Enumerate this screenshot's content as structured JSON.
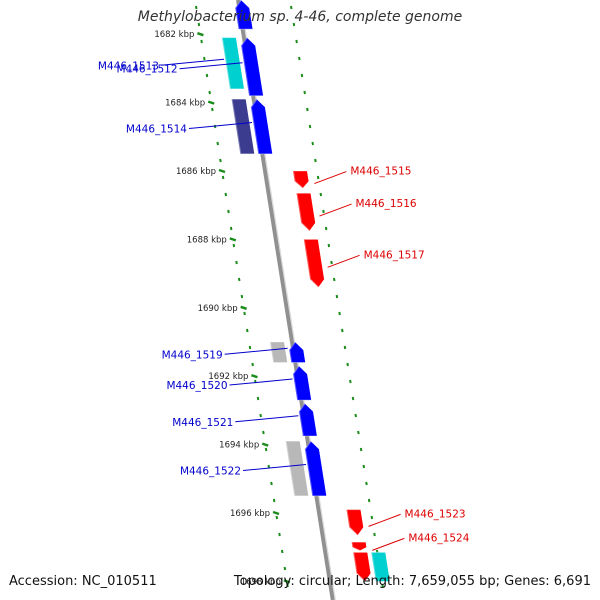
{
  "title": "Methylobacterium sp. 4-46, complete genome",
  "footer": {
    "accession": "Accession: NC_010511",
    "summary": "Topology: circular; Length: 7,659,055 bp; Genes: 6,691"
  },
  "colors": {
    "forward_gene": "#0000ff",
    "reverse_gene": "#ff0000",
    "dark_gene": "#3b3b8f",
    "cyan_gene": "#00d0d0",
    "grey_gene": "#b8b8b8",
    "backbone": "#909090",
    "tick": "#1a8c1a",
    "forward_label": "#0000cc",
    "reverse_label": "#dd0000"
  },
  "ticks": [
    {
      "label": "1682 kbp",
      "kbp": 1682
    },
    {
      "label": "1684 kbp",
      "kbp": 1684
    },
    {
      "label": "1686 kbp",
      "kbp": 1686
    },
    {
      "label": "1688 kbp",
      "kbp": 1688
    },
    {
      "label": "1690 kbp",
      "kbp": 1690
    },
    {
      "label": "1692 kbp",
      "kbp": 1692
    },
    {
      "label": "1694 kbp",
      "kbp": 1694
    },
    {
      "label": "1696 kbp",
      "kbp": 1696
    },
    {
      "label": "1698 kbp",
      "kbp": 1698
    }
  ],
  "genes": [
    {
      "name": "",
      "strand": "forward",
      "color": "forward_gene",
      "start_kbp": 1681.0,
      "end_kbp": 1681.85
    },
    {
      "name": "M446_1512",
      "strand": "forward",
      "color": "forward_gene",
      "start_kbp": 1682.1,
      "end_kbp": 1683.8
    },
    {
      "name": "M446_1513",
      "strand": "forward",
      "color": "cyan_gene",
      "start_kbp": 1682.1,
      "end_kbp": 1683.6
    },
    {
      "name": "M446_1514",
      "strand": "forward",
      "color": "forward_gene",
      "start_kbp": 1683.9,
      "end_kbp": 1685.5
    },
    {
      "name": "",
      "strand": "forward",
      "color": "dark_gene",
      "start_kbp": 1683.9,
      "end_kbp": 1685.5
    },
    {
      "name": "M446_1515",
      "strand": "reverse",
      "color": "reverse_gene",
      "start_kbp": 1686.0,
      "end_kbp": 1686.5
    },
    {
      "name": "M446_1516",
      "strand": "reverse",
      "color": "reverse_gene",
      "start_kbp": 1686.65,
      "end_kbp": 1687.75
    },
    {
      "name": "M446_1517",
      "strand": "reverse",
      "color": "reverse_gene",
      "start_kbp": 1688.0,
      "end_kbp": 1689.4
    },
    {
      "name": "M446_1519",
      "strand": "forward",
      "color": "forward_gene",
      "start_kbp": 1691.0,
      "end_kbp": 1691.6
    },
    {
      "name": "",
      "strand": "forward",
      "color": "grey_gene",
      "start_kbp": 1691.0,
      "end_kbp": 1691.6
    },
    {
      "name": "M446_1520",
      "strand": "forward",
      "color": "forward_gene",
      "start_kbp": 1691.7,
      "end_kbp": 1692.7
    },
    {
      "name": "M446_1521",
      "strand": "forward",
      "color": "forward_gene",
      "start_kbp": 1692.8,
      "end_kbp": 1693.75
    },
    {
      "name": "M446_1522",
      "strand": "forward",
      "color": "forward_gene",
      "start_kbp": 1693.9,
      "end_kbp": 1695.5
    },
    {
      "name": "",
      "strand": "forward",
      "color": "grey_gene",
      "start_kbp": 1693.9,
      "end_kbp": 1695.5
    },
    {
      "name": "M446_1523",
      "strand": "reverse",
      "color": "reverse_gene",
      "start_kbp": 1695.9,
      "end_kbp": 1696.65
    },
    {
      "name": "M446_1524",
      "strand": "reverse",
      "color": "reverse_gene",
      "start_kbp": 1696.85,
      "end_kbp": 1697.1
    },
    {
      "name": "",
      "strand": "reverse",
      "color": "reverse_gene",
      "start_kbp": 1697.15,
      "end_kbp": 1698.0
    },
    {
      "name": "",
      "strand": "reverse",
      "color": "cyan_gene",
      "start_kbp": 1697.15,
      "end_kbp": 1698.0
    }
  ]
}
